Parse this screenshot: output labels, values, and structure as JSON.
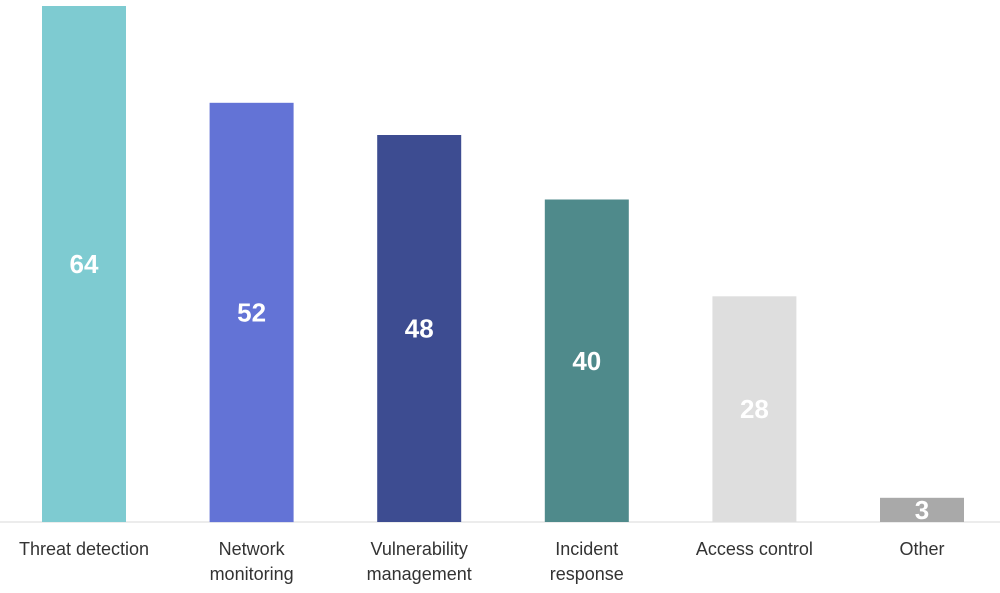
{
  "chart_data": {
    "type": "bar",
    "categories": [
      [
        "Threat detection"
      ],
      [
        "Network",
        "monitoring"
      ],
      [
        "Vulnerability",
        "management"
      ],
      [
        "Incident",
        "response"
      ],
      [
        "Access control"
      ],
      [
        "Other"
      ]
    ],
    "values": [
      64,
      52,
      48,
      40,
      28,
      3
    ],
    "colors": [
      "#7ecbd1",
      "#6373d6",
      "#3d4c91",
      "#4f8a8b",
      "#dedede",
      "#a9a9a9"
    ],
    "title": "",
    "xlabel": "",
    "ylabel": "",
    "ylim": [
      0,
      64
    ],
    "grid": false,
    "legend": "none",
    "data_labels": "inside-center"
  }
}
